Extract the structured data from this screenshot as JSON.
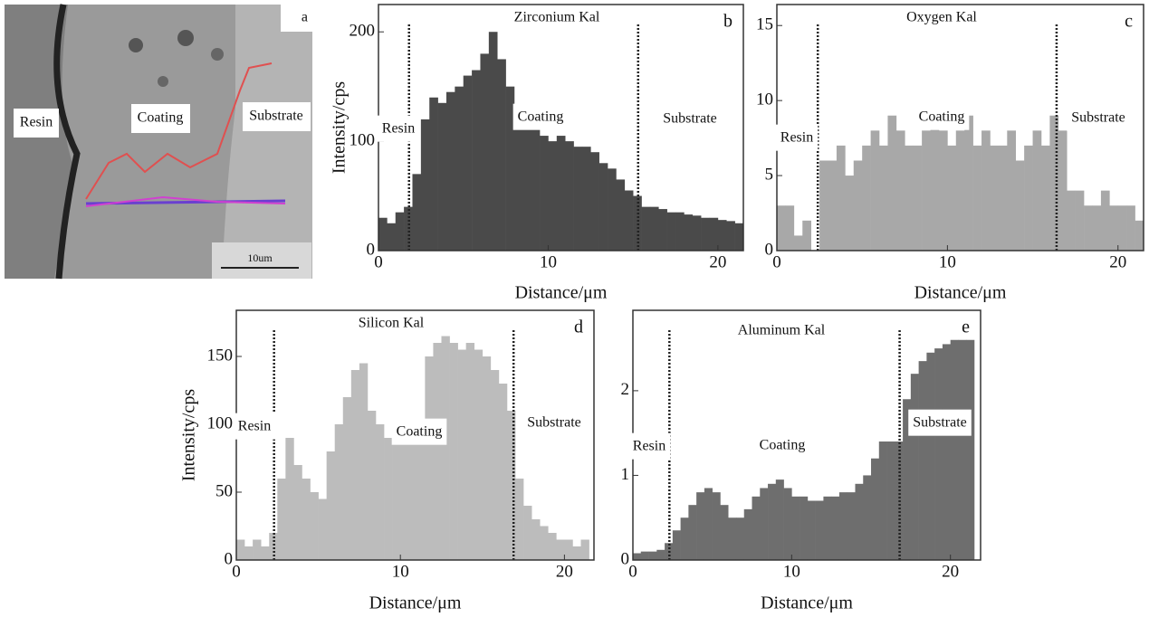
{
  "image": {
    "panel": "a",
    "labels": [
      "Resin",
      "Coating",
      "Substrate"
    ],
    "scale_bar": "10um"
  },
  "chart_data": [
    {
      "type": "histogram",
      "panel": "b",
      "title": "Zirconium Kal",
      "xlabel": "Distance/μm",
      "ylabel": "Intensity/cps",
      "color": "#4a4a4a",
      "bins": [
        0,
        0.5,
        1,
        1.5,
        2,
        2.5,
        3,
        3.5,
        4,
        4.5,
        5,
        5.5,
        6,
        6.5,
        7,
        7.5,
        8,
        8.5,
        9,
        9.5,
        10,
        10.5,
        11,
        11.5,
        12,
        12.5,
        13,
        13.5,
        14,
        14.5,
        15,
        15.5,
        16,
        16.5,
        17,
        17.5,
        18,
        18.5,
        19,
        19.5,
        20,
        20.5,
        21,
        21.5
      ],
      "values": [
        30,
        25,
        35,
        40,
        70,
        120,
        140,
        135,
        145,
        150,
        160,
        165,
        180,
        200,
        175,
        150,
        130,
        120,
        115,
        105,
        100,
        105,
        100,
        95,
        95,
        90,
        80,
        75,
        65,
        55,
        50,
        40,
        40,
        38,
        35,
        35,
        33,
        32,
        30,
        30,
        28,
        27,
        25
      ],
      "xlim": [
        0,
        21.5
      ],
      "ylim": [
        0,
        225
      ],
      "xticks": [
        0,
        10,
        20
      ],
      "yticks": [
        0,
        100,
        200
      ],
      "boundaries": [
        1.8,
        15.3
      ],
      "annotations": [
        "Resin",
        "Coating",
        "Substrate"
      ]
    },
    {
      "type": "histogram",
      "panel": "c",
      "title": "Oxygen Kal",
      "xlabel": "Distance/μm",
      "color": "#a8a8a8",
      "bins": [
        0,
        0.5,
        1,
        1.5,
        2,
        2.5,
        3,
        3.5,
        4,
        4.5,
        5,
        5.5,
        6,
        6.5,
        7,
        7.5,
        8,
        8.5,
        9,
        9.5,
        10,
        10.5,
        11,
        11.5,
        12,
        12.5,
        13,
        13.5,
        14,
        14.5,
        15,
        15.5,
        16,
        16.5,
        17,
        17.5,
        18,
        18.5,
        19,
        19.5,
        20,
        20.5,
        21,
        21.5
      ],
      "values": [
        3,
        3,
        1,
        2,
        0,
        6,
        6,
        7,
        5,
        6,
        7,
        8,
        7,
        9,
        8,
        7,
        7,
        8,
        9,
        8,
        7,
        8,
        9,
        7,
        8,
        7,
        7,
        8,
        6,
        7,
        8,
        7,
        9,
        8,
        4,
        4,
        3,
        3,
        4,
        3,
        3,
        3,
        2
      ],
      "xlim": [
        0,
        21.5
      ],
      "ylim": [
        0,
        16.4
      ],
      "xticks": [
        0,
        10,
        20
      ],
      "yticks": [
        0,
        5,
        10,
        15
      ],
      "boundaries": [
        2.4,
        16.4
      ],
      "annotations": [
        "Resin",
        "Coating",
        "Substrate"
      ]
    },
    {
      "type": "histogram",
      "panel": "d",
      "title": "Silicon Kal",
      "xlabel": "Distance/μm",
      "ylabel": "Intensity/cps",
      "color": "#bcbcbc",
      "bins": [
        0,
        0.5,
        1,
        1.5,
        2,
        2.5,
        3,
        3.5,
        4,
        4.5,
        5,
        5.5,
        6,
        6.5,
        7,
        7.5,
        8,
        8.5,
        9,
        9.5,
        10,
        10.5,
        11,
        11.5,
        12,
        12.5,
        13,
        13.5,
        14,
        14.5,
        15,
        15.5,
        16,
        16.5,
        17,
        17.5,
        18,
        18.5,
        19,
        19.5,
        20,
        20.5,
        21,
        21.5
      ],
      "values": [
        15,
        10,
        15,
        10,
        20,
        60,
        90,
        70,
        60,
        50,
        45,
        80,
        100,
        120,
        140,
        145,
        110,
        100,
        90,
        95,
        100,
        90,
        100,
        150,
        160,
        165,
        160,
        155,
        160,
        155,
        150,
        140,
        130,
        110,
        60,
        40,
        30,
        25,
        20,
        15,
        15,
        10,
        15
      ],
      "xlim": [
        0,
        21.8
      ],
      "ylim": [
        0,
        184
      ],
      "xticks": [
        0,
        10,
        20
      ],
      "yticks": [
        0,
        50,
        100,
        150
      ],
      "boundaries": [
        2.3,
        16.9
      ],
      "annotations": [
        "Resin",
        "Coating",
        "Substrate"
      ]
    },
    {
      "type": "histogram",
      "panel": "e",
      "title": "Aluminum Kal",
      "xlabel": "Distance/μm",
      "color": "#6e6e6e",
      "bins": [
        0,
        0.5,
        1,
        1.5,
        2,
        2.5,
        3,
        3.5,
        4,
        4.5,
        5,
        5.5,
        6,
        6.5,
        7,
        7.5,
        8,
        8.5,
        9,
        9.5,
        10,
        10.5,
        11,
        11.5,
        12,
        12.5,
        13,
        13.5,
        14,
        14.5,
        15,
        15.5,
        16,
        16.5,
        17,
        17.5,
        18,
        18.5,
        19,
        19.5,
        20,
        20.5,
        21,
        21.5
      ],
      "values": [
        0.08,
        0.1,
        0.1,
        0.12,
        0.2,
        0.35,
        0.5,
        0.65,
        0.8,
        0.85,
        0.8,
        0.65,
        0.5,
        0.5,
        0.6,
        0.75,
        0.85,
        0.9,
        0.95,
        0.85,
        0.75,
        0.75,
        0.7,
        0.7,
        0.75,
        0.75,
        0.8,
        0.8,
        0.9,
        1.0,
        1.2,
        1.4,
        1.4,
        1.4,
        1.9,
        2.2,
        2.35,
        2.45,
        2.5,
        2.55,
        2.6,
        2.6,
        2.6
      ],
      "xlim": [
        0,
        21.9
      ],
      "ylim": [
        0,
        2.95
      ],
      "xticks": [
        0,
        10,
        20
      ],
      "yticks": [
        0,
        1,
        2
      ],
      "boundaries": [
        2.3,
        16.8
      ],
      "annotations": [
        "Resin",
        "Coating",
        "Substrate"
      ]
    }
  ]
}
